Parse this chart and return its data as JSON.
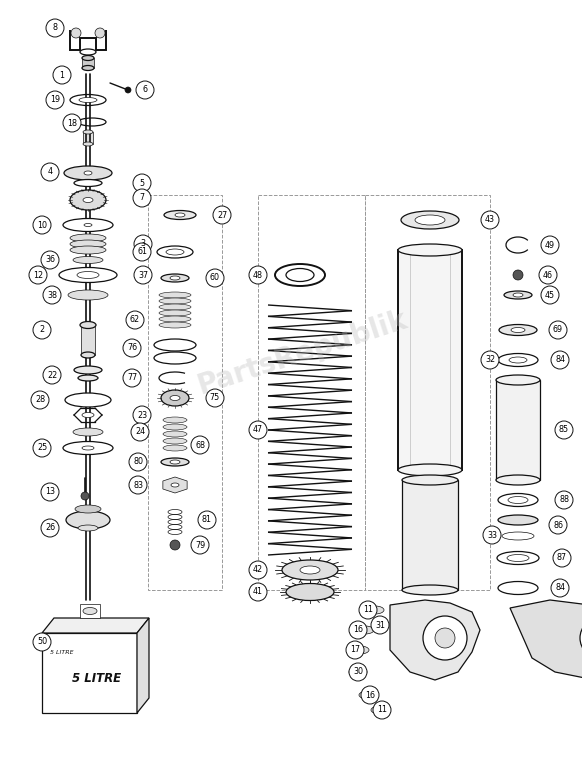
{
  "background_color": "#ffffff",
  "line_color": "#111111",
  "watermark_text": "PartsRepublik",
  "watermark_color": "#bbbbbb",
  "watermark_alpha": 0.35,
  "fig_width": 5.82,
  "fig_height": 7.83,
  "dpi": 100
}
